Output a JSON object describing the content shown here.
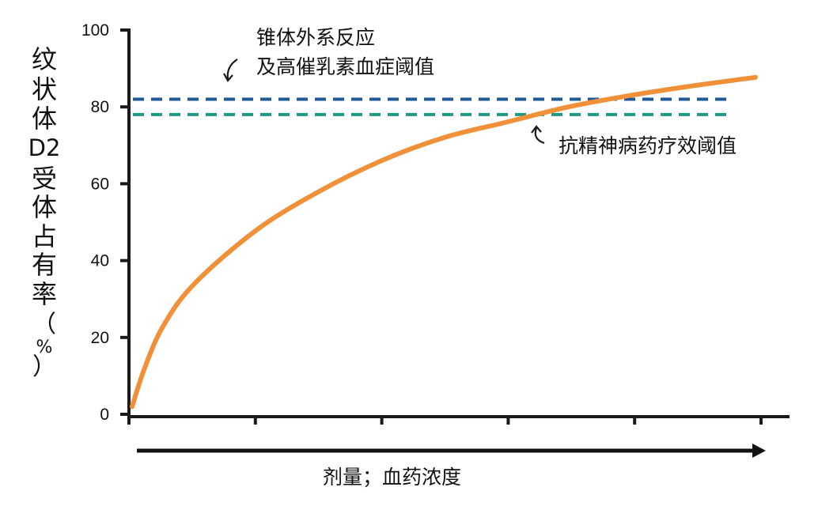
{
  "chart_data": {
    "type": "line",
    "ylabel_chars": [
      "纹",
      "状",
      "体",
      "D2",
      "受",
      "体",
      "占",
      "有",
      "率",
      "（",
      "%",
      "）"
    ],
    "xlabel": "剂量；血药浓度",
    "ylim": [
      0,
      100
    ],
    "y_ticks": [
      0,
      20,
      40,
      60,
      80,
      100
    ],
    "x_tick_count": 6,
    "curve": {
      "color": "#f0913a",
      "x": [
        0,
        0.02,
        0.05,
        0.1,
        0.2,
        0.3,
        0.4,
        0.5,
        0.6,
        0.7,
        0.8,
        0.9,
        1.0
      ],
      "y": [
        2,
        12,
        23,
        34,
        48,
        58,
        66,
        72,
        76,
        80,
        83,
        85.5,
        87.7
      ]
    },
    "thresholds": [
      {
        "id": "eps-prolactin",
        "value": 82,
        "color": "#1f5a96",
        "label_lines": [
          "锥体外系反应",
          "及高催乳素血症阈值"
        ]
      },
      {
        "id": "antipsychotic",
        "value": 78,
        "color": "#1e9a84",
        "label_lines": [
          "抗精神病药疗效阈值"
        ]
      }
    ],
    "grid": false
  }
}
